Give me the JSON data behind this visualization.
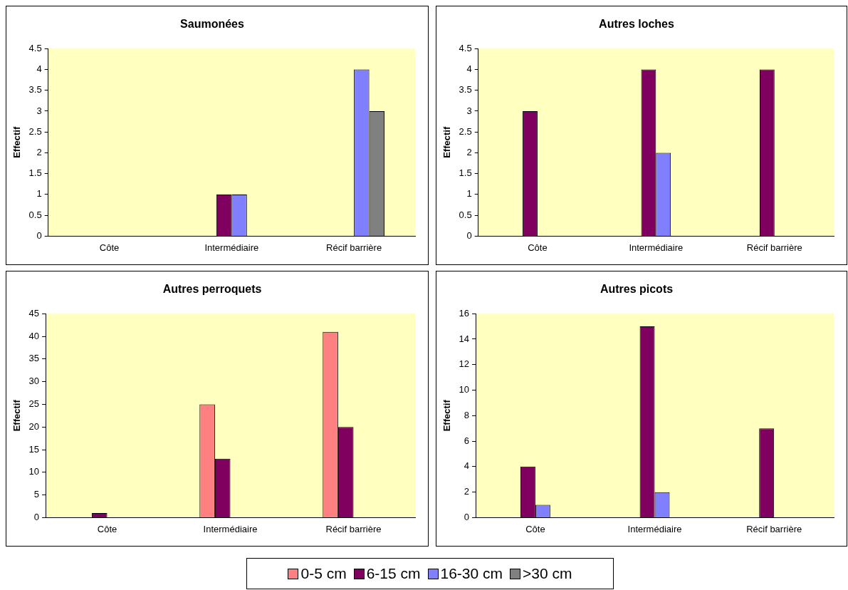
{
  "chart_data": [
    {
      "type": "bar",
      "title": "Saumonées",
      "ylabel": "Effectif",
      "categories": [
        "Côte",
        "Intermédiaire",
        "Récif barrière"
      ],
      "ylim": [
        0,
        4.5
      ],
      "yticks": [
        0,
        0.5,
        1,
        1.5,
        2,
        2.5,
        3,
        3.5,
        4,
        4.5
      ],
      "grid": false,
      "legend": "bottom",
      "series": [
        {
          "name": "0-5 cm",
          "color": "#ff8080",
          "values": [
            null,
            null,
            null
          ]
        },
        {
          "name": "6-15 cm",
          "color": "#800060",
          "values": [
            null,
            1,
            null
          ]
        },
        {
          "name": "16-30 cm",
          "color": "#8080ff",
          "values": [
            null,
            1,
            4
          ]
        },
        {
          "name": ">30 cm",
          "color": "#808080",
          "values": [
            null,
            null,
            3
          ]
        }
      ]
    },
    {
      "type": "bar",
      "title": "Autres loches",
      "ylabel": "Effectif",
      "categories": [
        "Côte",
        "Intermédiaire",
        "Récif barrière"
      ],
      "ylim": [
        0,
        4.5
      ],
      "yticks": [
        0,
        0.5,
        1,
        1.5,
        2,
        2.5,
        3,
        3.5,
        4,
        4.5
      ],
      "grid": false,
      "series": [
        {
          "color": "#ff8080",
          "values": [
            null,
            null,
            null
          ]
        },
        {
          "color": "#800060",
          "values": [
            3,
            4,
            4
          ]
        },
        {
          "color": "#8080ff",
          "values": [
            null,
            2,
            null
          ]
        },
        {
          "color": "#808080",
          "values": [
            null,
            null,
            null
          ]
        }
      ]
    },
    {
      "type": "bar",
      "title": "Autres perroquets",
      "ylabel": "Effectif",
      "categories": [
        "Côte",
        "Intermédiaire",
        "Récif barrière"
      ],
      "ylim": [
        0,
        45
      ],
      "yticks": [
        0,
        5,
        10,
        15,
        20,
        25,
        30,
        35,
        40,
        45
      ],
      "grid": false,
      "series": [
        {
          "color": "#ff8080",
          "values": [
            null,
            25,
            41
          ]
        },
        {
          "color": "#800060",
          "values": [
            1,
            13,
            20
          ]
        },
        {
          "color": "#8080ff",
          "values": [
            null,
            null,
            null
          ]
        },
        {
          "color": "#808080",
          "values": [
            null,
            null,
            null
          ]
        }
      ]
    },
    {
      "type": "bar",
      "title": "Autres picots",
      "ylabel": "Effectif",
      "categories": [
        "Côte",
        "Intermédiaire",
        "Récif barrière"
      ],
      "ylim": [
        0,
        16
      ],
      "yticks": [
        0,
        2,
        4,
        6,
        8,
        10,
        12,
        14,
        16
      ],
      "grid": false,
      "series": [
        {
          "color": "#ff8080",
          "values": [
            null,
            null,
            null
          ]
        },
        {
          "color": "#800060",
          "values": [
            4,
            15,
            7
          ]
        },
        {
          "color": "#8080ff",
          "values": [
            1,
            2,
            null
          ]
        },
        {
          "color": "#808080",
          "values": [
            null,
            null,
            null
          ]
        }
      ]
    }
  ]
}
